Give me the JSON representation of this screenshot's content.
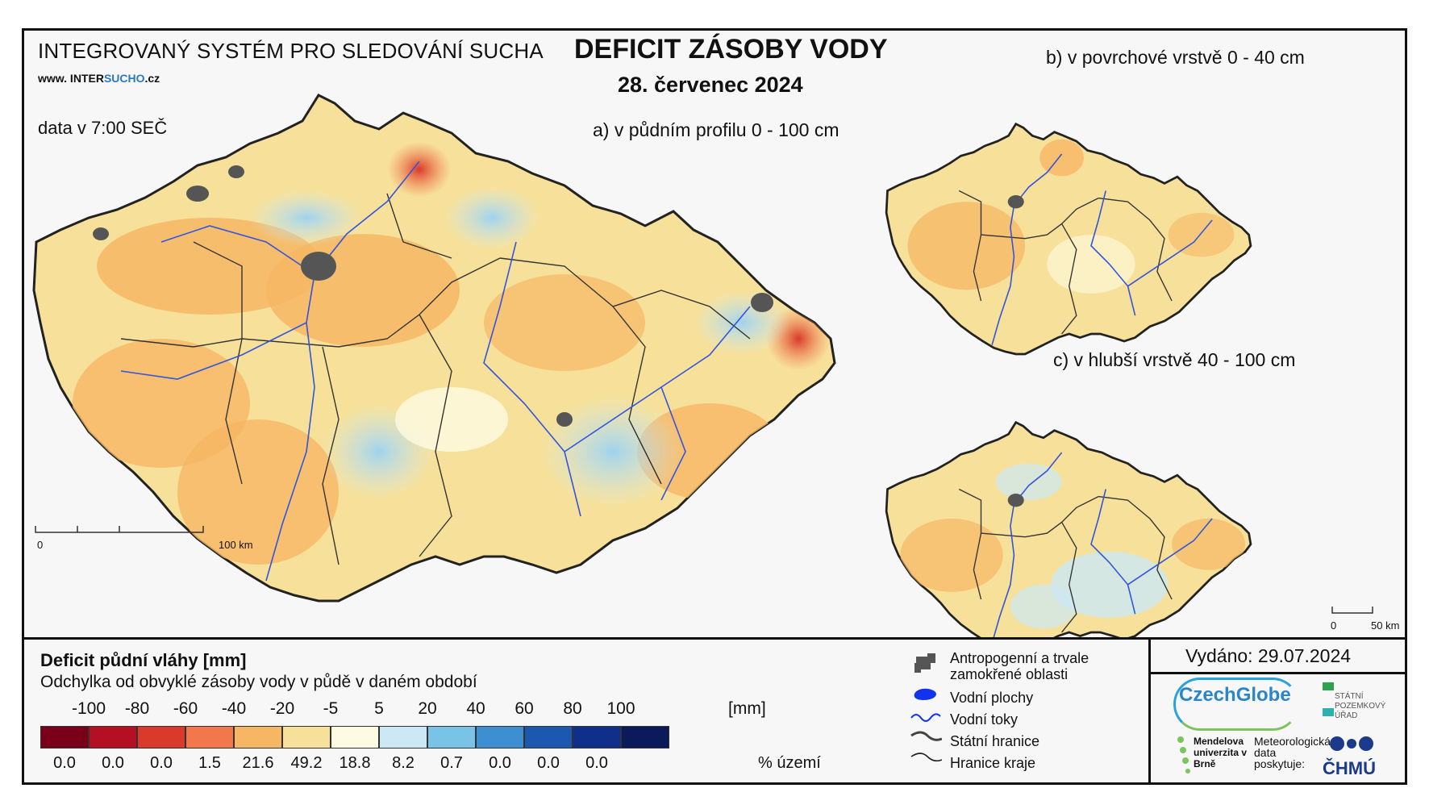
{
  "header": {
    "system_name": "INTEGROVANÝ SYSTÉM PRO SLEDOVÁNÍ SUCHA",
    "website_prefix": "www. INTER",
    "website_highlight": "SUCHO",
    "website_suffix": ".cz",
    "data_time": "data v 7:00 SEČ",
    "title": "DEFICIT ZÁSOBY VODY",
    "date": "28. červenec 2024"
  },
  "maps": {
    "a_label": "a) v půdním profilu 0 - 100 cm",
    "b_label": "b) v povrchové vrstvě 0 - 40 cm",
    "c_label": "c) v hlubší vrstvě 40 - 100 cm",
    "scale_main_start": "0",
    "scale_main_end": "100 km",
    "scale_small_start": "0",
    "scale_small_end": "50 km"
  },
  "legend": {
    "title": "Deficit půdní vláhy  [mm]",
    "subtitle": "Odchylka od obvyklé zásoby vody v půdě v daném období",
    "bins": [
      "-100",
      "-80",
      "-60",
      "-40",
      "-20",
      "-5",
      "5",
      "20",
      "40",
      "60",
      "80",
      "100"
    ],
    "unit": "[mm]",
    "colors": [
      "#7a0019",
      "#b40f23",
      "#d93a2a",
      "#f2774a",
      "#f6b764",
      "#f7e19a",
      "#fdfbe2",
      "#cce8f5",
      "#79c3e6",
      "#3e8fd1",
      "#1c57b0",
      "#0f2f8a",
      "#0a1a5a"
    ],
    "percents": [
      "0.0",
      "0.0",
      "0.0",
      "1.5",
      "21.6",
      "49.2",
      "18.8",
      "8.2",
      "0.7",
      "0.0",
      "0.0",
      "0.0"
    ],
    "percent_label": "% území"
  },
  "map_key": {
    "urban_line1": "Antropogenní a trvale",
    "urban_line2": "zamokřené oblasti",
    "water_bodies": "Vodní plochy",
    "rivers": "Vodní toky",
    "state_border": "Státní hranice",
    "region_border": "Hranice kraje"
  },
  "footer": {
    "issued": "Vydáno: 29.07.2024",
    "logo_czechglobe": "CzechGlobe",
    "logo_spu": "STÁTNÍ POZEMKOVÝ ÚŘAD",
    "logo_mendelu": "Mendelova univerzita v Brně",
    "logo_met": "Meteorologická data poskytuje:",
    "logo_chmu": "ČHMÚ"
  }
}
